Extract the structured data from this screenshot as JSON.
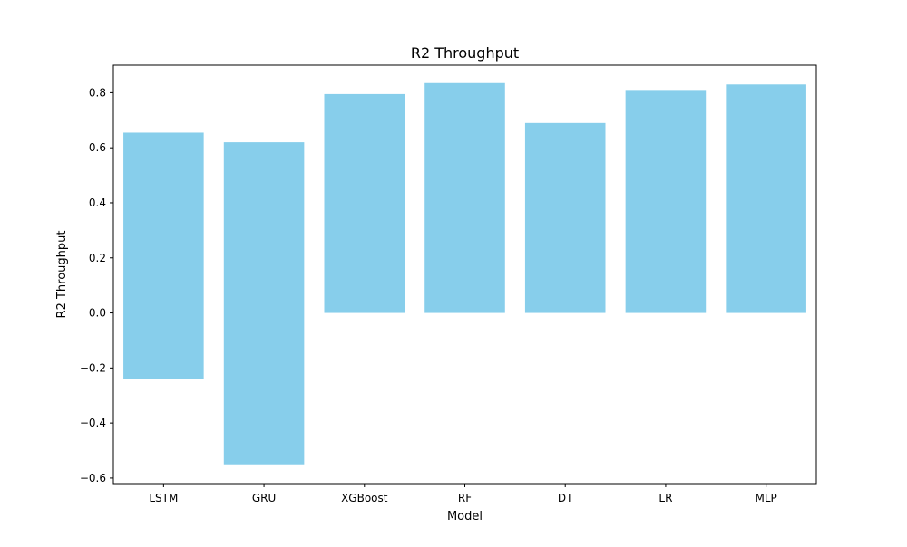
{
  "chart_data": {
    "type": "bar",
    "title": "R2 Throughput",
    "xlabel": "Model",
    "ylabel": "R2 Throughput",
    "categories": [
      "LSTM",
      "GRU",
      "XGBoost",
      "RF",
      "DT",
      "LR",
      "MLP"
    ],
    "series": [
      {
        "values_low": [
          -0.24,
          -0.55,
          0.0,
          0.0,
          0.0,
          0.0,
          0.0
        ],
        "values_high": [
          0.655,
          0.62,
          0.795,
          0.835,
          0.69,
          0.81,
          0.83
        ]
      }
    ],
    "ylim": [
      -0.62,
      0.9
    ],
    "yticks": [
      -0.6,
      -0.4,
      -0.2,
      0.0,
      0.2,
      0.4,
      0.6,
      0.8
    ],
    "ytick_labels": [
      "−0.6",
      "−0.4",
      "−0.2",
      "0.0",
      "0.2",
      "0.4",
      "0.6",
      "0.8"
    ],
    "grid": false,
    "bar_color": "#87ceeb"
  }
}
